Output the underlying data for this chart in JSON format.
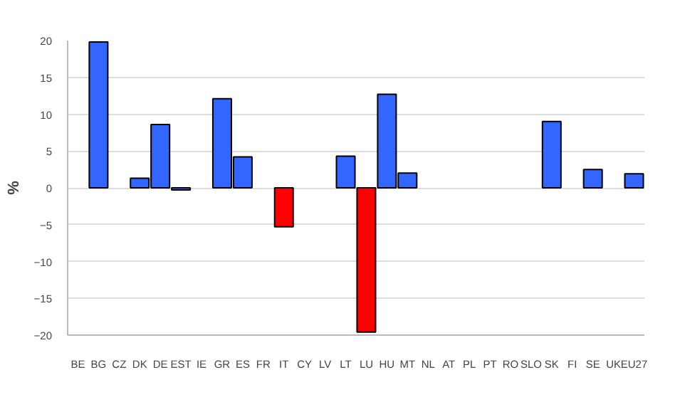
{
  "chart_data": {
    "type": "bar",
    "ylabel": "%",
    "categories": [
      "BE",
      "BG",
      "CZ",
      "DK",
      "DE",
      "EST",
      "IE",
      "GR",
      "ES",
      "FR",
      "IT",
      "CY",
      "LV",
      "LT",
      "LU",
      "HU",
      "MT",
      "NL",
      "AT",
      "PL",
      "PT",
      "RO",
      "SLO",
      "SK",
      "FI",
      "SE",
      "UK",
      "EU27"
    ],
    "values": [
      null,
      19.8,
      null,
      1.3,
      8.6,
      -0.3,
      null,
      12.1,
      4.2,
      null,
      -5.3,
      null,
      null,
      4.3,
      -19.6,
      12.7,
      2.0,
      null,
      null,
      null,
      null,
      null,
      null,
      9.0,
      null,
      2.5,
      null,
      1.9
    ],
    "colors": [
      "#3366ff",
      "#3366ff",
      "#3366ff",
      "#3366ff",
      "#3366ff",
      "#3366ff",
      "#3366ff",
      "#3366ff",
      "#3366ff",
      "#3366ff",
      "#ff0000",
      "#3366ff",
      "#3366ff",
      "#3366ff",
      "#ff0000",
      "#3366ff",
      "#3366ff",
      "#3366ff",
      "#3366ff",
      "#3366ff",
      "#3366ff",
      "#3366ff",
      "#3366ff",
      "#3366ff",
      "#3366ff",
      "#3366ff",
      "#3366ff",
      "#3366ff"
    ],
    "ylim": [
      -20,
      20
    ],
    "yticks": [
      -20,
      -15,
      -10,
      -5,
      0,
      5,
      10,
      15,
      20
    ],
    "grid": "y"
  }
}
